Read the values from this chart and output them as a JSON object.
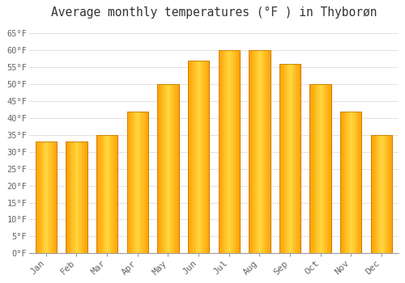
{
  "title": "Average monthly temperatures (°F ) in Thyborøn",
  "months": [
    "Jan",
    "Feb",
    "Mar",
    "Apr",
    "May",
    "Jun",
    "Jul",
    "Aug",
    "Sep",
    "Oct",
    "Nov",
    "Dec"
  ],
  "values": [
    33,
    33,
    35,
    42,
    50,
    57,
    60,
    60,
    56,
    50,
    42,
    35
  ],
  "bar_color_center": "#FFD740",
  "bar_color_edge": "#FFA000",
  "bar_edge_color": "#CC7A00",
  "background_color": "#FFFFFF",
  "grid_color": "#E0E0E8",
  "yticks": [
    0,
    5,
    10,
    15,
    20,
    25,
    30,
    35,
    40,
    45,
    50,
    55,
    60,
    65
  ],
  "ylim": [
    0,
    68
  ],
  "tick_label_color": "#666666",
  "title_color": "#333333",
  "title_fontsize": 10.5,
  "bar_width": 0.7,
  "figsize": [
    5.0,
    3.5
  ],
  "dpi": 100
}
